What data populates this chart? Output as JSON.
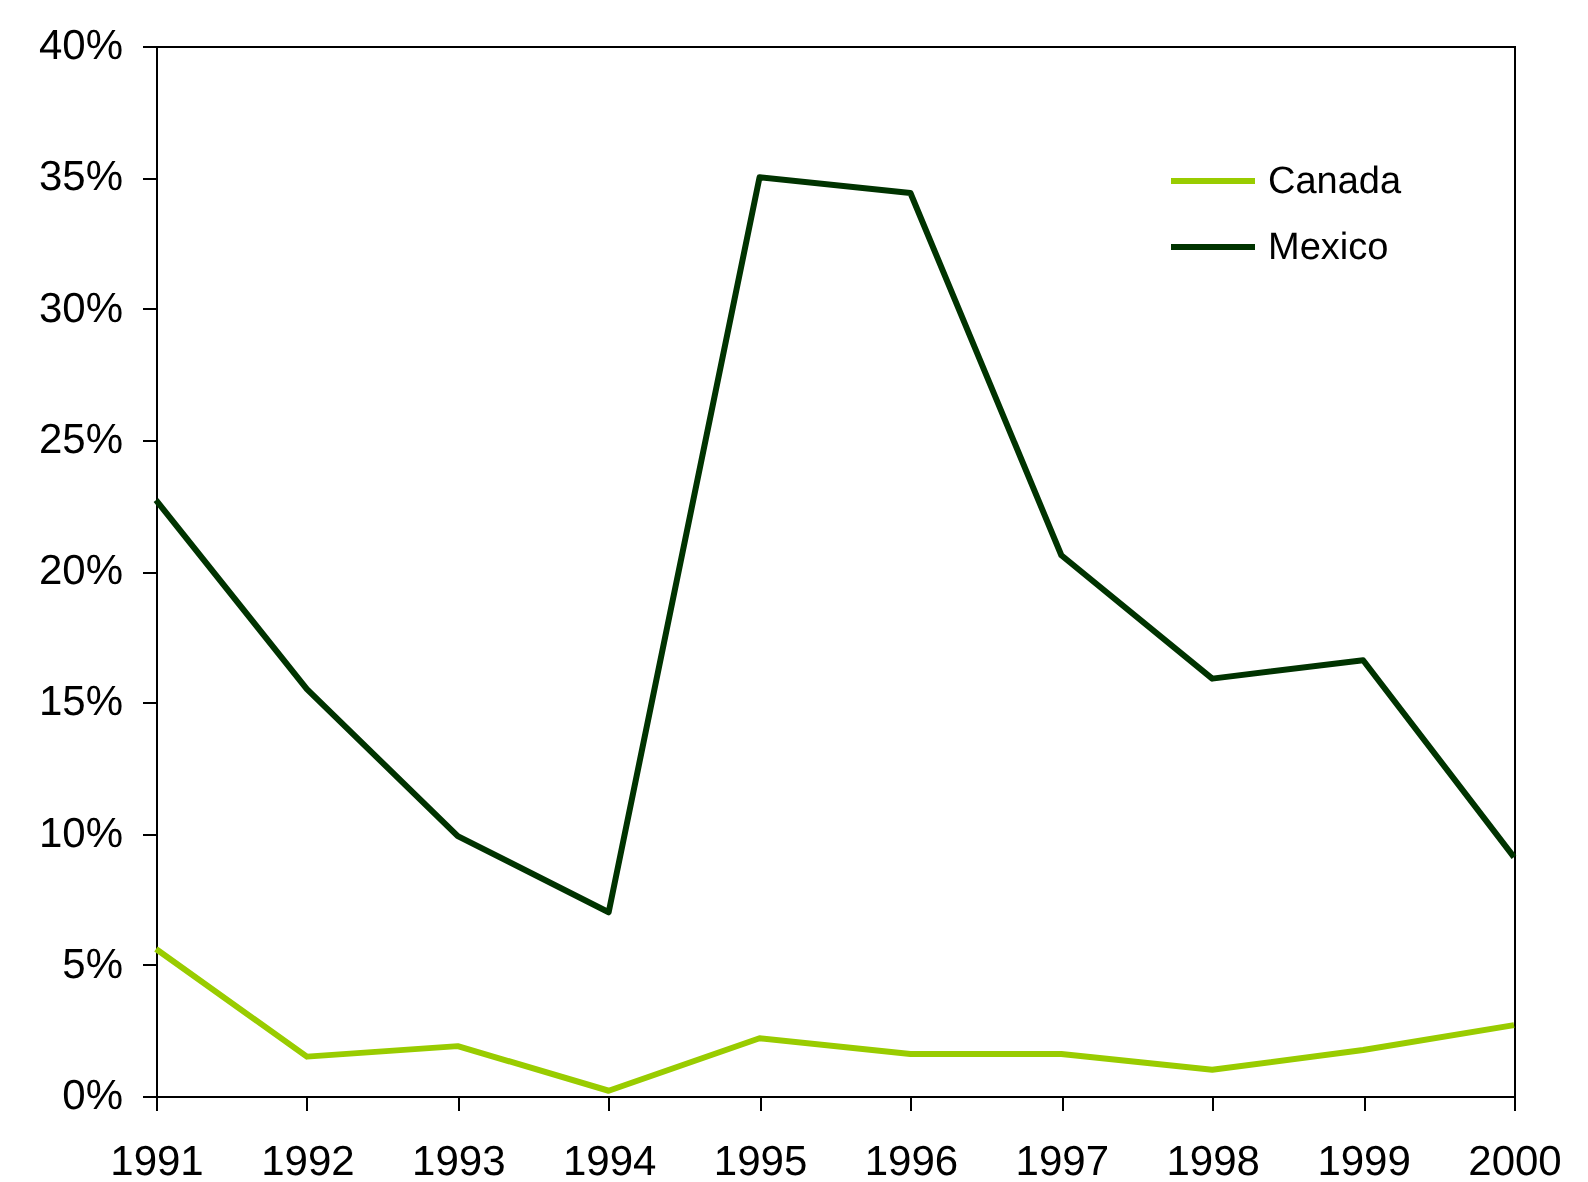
{
  "chart_data": {
    "type": "line",
    "categories": [
      "1991",
      "1992",
      "1993",
      "1994",
      "1995",
      "1996",
      "1997",
      "1998",
      "1999",
      "2000"
    ],
    "series": [
      {
        "name": "Canada",
        "color": "#99cc00",
        "values": [
          5.6,
          1.5,
          1.9,
          0.2,
          2.2,
          1.6,
          1.6,
          1.0,
          1.75,
          2.7
        ]
      },
      {
        "name": "Mexico",
        "color": "#003300",
        "values": [
          22.7,
          15.5,
          9.9,
          7.0,
          35.0,
          34.4,
          20.6,
          15.9,
          16.6,
          9.1
        ]
      }
    ],
    "ylim": [
      0,
      40
    ],
    "yticks": [
      {
        "value": 0,
        "label": "0%"
      },
      {
        "value": 5,
        "label": "5%"
      },
      {
        "value": 10,
        "label": "10%"
      },
      {
        "value": 15,
        "label": "15%"
      },
      {
        "value": 20,
        "label": "20%"
      },
      {
        "value": 25,
        "label": "25%"
      },
      {
        "value": 30,
        "label": "30%"
      },
      {
        "value": 35,
        "label": "35%"
      },
      {
        "value": 40,
        "label": "40%"
      }
    ],
    "legend": "top right"
  }
}
